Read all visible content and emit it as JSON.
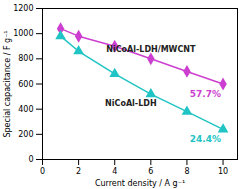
{
  "chart_data": {
    "type": "line",
    "x_label": "Current density / A g⁻¹",
    "y_label": "Special capacitance / F g⁻¹",
    "x": [
      1,
      2,
      4,
      6,
      8,
      10
    ],
    "series": [
      {
        "name": "NiCoAl-LDH/MWCNT",
        "color": "#cc3fd0",
        "marker": "diamond",
        "values": [
          1040,
          980,
          900,
          800,
          700,
          600
        ]
      },
      {
        "name": "NiCoAl-LDH",
        "color": "#21c4c4",
        "marker": "triangle",
        "values": [
          980,
          860,
          680,
          520,
          380,
          240
        ]
      }
    ],
    "annotations": [
      "57.7%",
      "24.4%"
    ],
    "xlim": [
      0,
      10.8
    ],
    "xticks": [
      0,
      2,
      4,
      6,
      8,
      10
    ],
    "ylim": [
      0,
      1200
    ],
    "yticks": [
      0,
      200,
      400,
      600,
      800,
      1000,
      1200
    ],
    "grid": false
  }
}
